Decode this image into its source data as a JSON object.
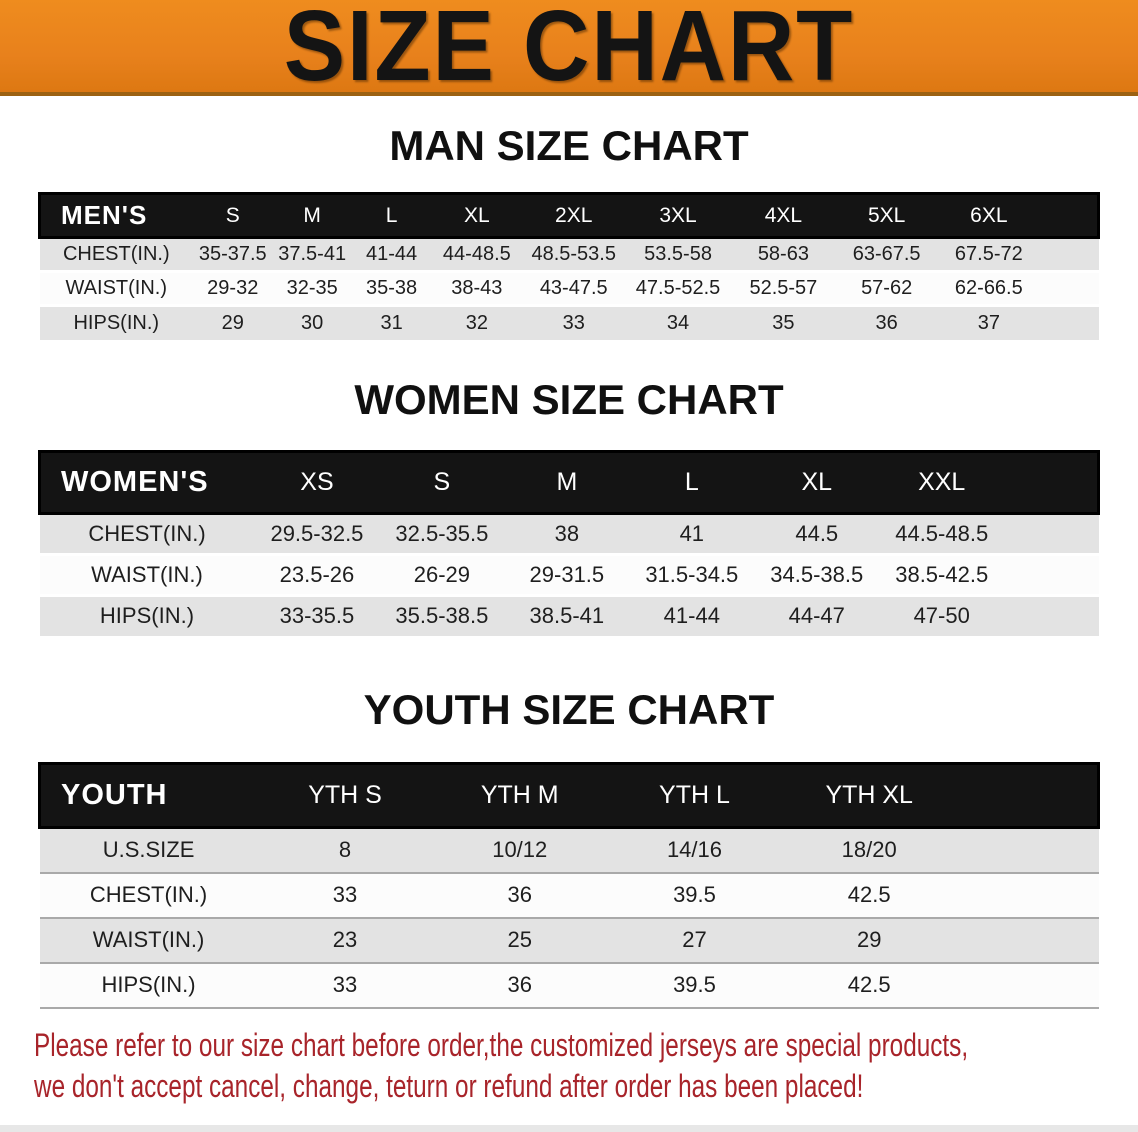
{
  "banner": {
    "title": "SIZE CHART"
  },
  "colors": {
    "banner_orange": "#E8811C",
    "header_black": "#141414",
    "row_gray": "#E3E3E3",
    "row_white": "#FCFCFC",
    "notice_red": "#A8242A"
  },
  "sections": [
    {
      "heading": "MAN SIZE CHART",
      "table": {
        "header_label": "MEN'S",
        "columns": [
          "S",
          "M",
          "L",
          "XL",
          "2XL",
          "3XL",
          "4XL",
          "5XL",
          "6XL"
        ],
        "rows": [
          {
            "label": "CHEST(IN.)",
            "values": [
              "35-37.5",
              "37.5-41",
              "41-44",
              "44-48.5",
              "48.5-53.5",
              "53.5-58",
              "58-63",
              "63-67.5",
              "67.5-72"
            ]
          },
          {
            "label": "WAIST(IN.)",
            "values": [
              "29-32",
              "32-35",
              "35-38",
              "38-43",
              "43-47.5",
              "47.5-52.5",
              "52.5-57",
              "57-62",
              "62-66.5"
            ]
          },
          {
            "label": "HIPS(IN.)",
            "values": [
              "29",
              "30",
              "31",
              "32",
              "33",
              "34",
              "35",
              "36",
              "37"
            ]
          }
        ],
        "col_widths_pct": [
          14.5,
          7.5,
          7.5,
          7.5,
          8.6,
          9.7,
          10,
          9.9,
          9.6,
          9.7,
          5.5
        ]
      }
    },
    {
      "heading": "WOMEN SIZE CHART",
      "table": {
        "header_label": "WOMEN'S",
        "columns": [
          "XS",
          "S",
          "M",
          "L",
          "XL",
          "XXL"
        ],
        "rows": [
          {
            "label": "CHEST(IN.)",
            "values": [
              "29.5-32.5",
              "32.5-35.5",
              "38",
              "41",
              "44.5",
              "44.5-48.5"
            ]
          },
          {
            "label": "WAIST(IN.)",
            "values": [
              "23.5-26",
              "26-29",
              "29-31.5",
              "31.5-34.5",
              "34.5-38.5",
              "38.5-42.5"
            ]
          },
          {
            "label": "HIPS(IN.)",
            "values": [
              "33-35.5",
              "35.5-38.5",
              "38.5-41",
              "41-44",
              "44-47",
              "47-50"
            ]
          }
        ],
        "col_widths_pct": [
          20.3,
          11.8,
          11.8,
          11.8,
          11.8,
          11.8,
          11.8,
          8.9
        ]
      }
    },
    {
      "heading": "YOUTH SIZE CHART",
      "table": {
        "header_label": "YOUTH",
        "columns": [
          "YTH S",
          "YTH M",
          "YTH L",
          "YTH XL"
        ],
        "rows": [
          {
            "label": "U.S.SIZE",
            "values": [
              "8",
              "10/12",
              "14/16",
              "18/20"
            ]
          },
          {
            "label": "CHEST(IN.)",
            "values": [
              "33",
              "36",
              "39.5",
              "42.5"
            ]
          },
          {
            "label": "WAIST(IN.)",
            "values": [
              "23",
              "25",
              "27",
              "29"
            ]
          },
          {
            "label": "HIPS(IN.)",
            "values": [
              "33",
              "36",
              "39.5",
              "42.5"
            ]
          }
        ],
        "col_widths_pct": [
          20.6,
          16.5,
          16.5,
          16.5,
          16.5,
          13.4
        ]
      }
    }
  ],
  "footer": {
    "line1": "Please refer to our size chart before order,the customized jerseys are special products,",
    "line2": "we don't accept cancel, change, teturn or refund after order has been placed!"
  }
}
